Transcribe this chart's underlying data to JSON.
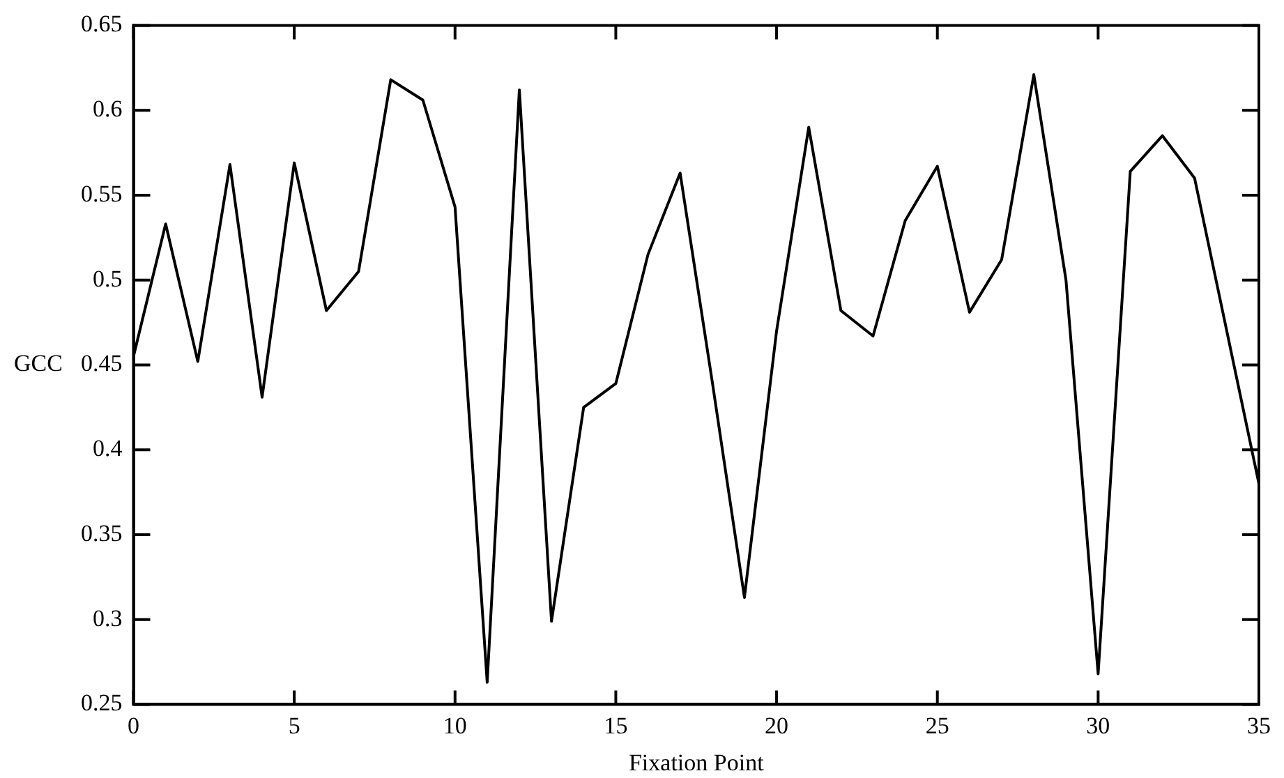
{
  "chart_data": {
    "type": "line",
    "xlabel": "Fixation Point",
    "ylabel": "GCC",
    "x": [
      0,
      1,
      2,
      3,
      4,
      5,
      6,
      7,
      8,
      9,
      10,
      11,
      12,
      13,
      14,
      15,
      16,
      17,
      18,
      19,
      20,
      21,
      22,
      23,
      24,
      25,
      26,
      27,
      28,
      29,
      30,
      31,
      32,
      33,
      34,
      35
    ],
    "series": [
      {
        "color": "#000000",
        "values": [
          0.455,
          0.533,
          0.452,
          0.568,
          0.431,
          0.569,
          0.482,
          0.505,
          0.618,
          0.606,
          0.543,
          0.263,
          0.612,
          0.299,
          0.425,
          0.439,
          0.515,
          0.563,
          0.44,
          0.313,
          0.47,
          0.59,
          0.482,
          0.467,
          0.535,
          0.567,
          0.481,
          0.512,
          0.621,
          0.5,
          0.268,
          0.564,
          0.585,
          0.56,
          0.47,
          0.38
        ]
      }
    ],
    "xlim": [
      0,
      35
    ],
    "xticks": [
      0,
      5,
      10,
      15,
      20,
      25,
      30,
      35
    ],
    "ylim": [
      0.25,
      0.65
    ],
    "yticks": [
      0.25,
      0.3,
      0.35,
      0.4,
      0.45,
      0.5,
      0.55,
      0.6,
      0.65
    ],
    "grid": false,
    "legend": false,
    "marker": "none",
    "line_style": "solid"
  }
}
